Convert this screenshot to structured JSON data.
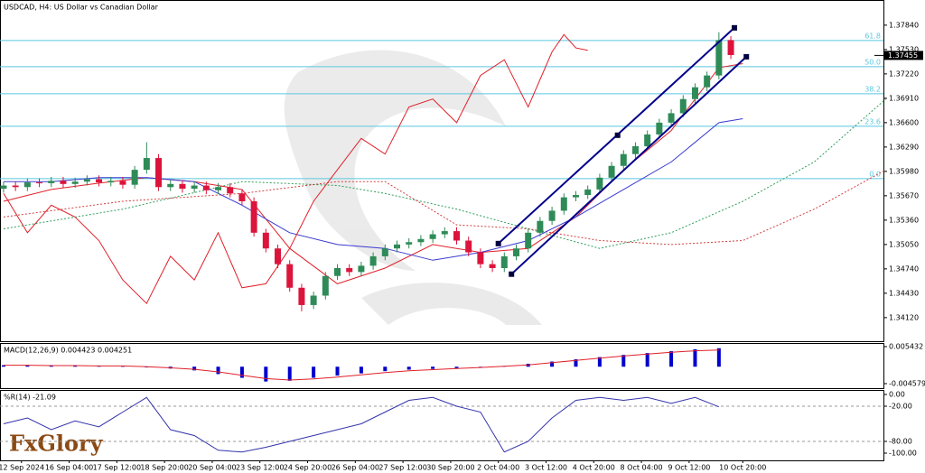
{
  "logo": "FxGlory",
  "chart_data": [
    {
      "type": "candlestick",
      "title": "USDCAD, H4:  US Dollar vs Canadian Dollar",
      "up_color": "#2e8b57",
      "down_color": "#dc143c",
      "xlim": [
        -0.6,
        147.6
      ],
      "xticks": [
        {
          "value": 3,
          "label": "12 Sep 2024"
        },
        {
          "value": 11,
          "label": "16 Sep 04:00"
        },
        {
          "value": 19,
          "label": "17 Sep 12:00"
        },
        {
          "value": 27,
          "label": "18 Sep 20:00"
        },
        {
          "value": 35,
          "label": "20 Sep 04:00"
        },
        {
          "value": 43,
          "label": "23 Sep 12:00"
        },
        {
          "value": 51,
          "label": "24 Sep 20:00"
        },
        {
          "value": 59,
          "label": "26 Sep 04:00"
        },
        {
          "value": 67,
          "label": "27 Sep 12:00"
        },
        {
          "value": 75,
          "label": "30 Sep 20:00"
        },
        {
          "value": 83,
          "label": "2 Oct 04:00"
        },
        {
          "value": 91,
          "label": "3 Oct 12:00"
        },
        {
          "value": 99,
          "label": "4 Oct 20:00"
        },
        {
          "value": 107,
          "label": "8 Oct 04:00"
        },
        {
          "value": 115,
          "label": "9 Oct 12:00"
        },
        {
          "value": 124,
          "label": "10 Oct 20:00"
        }
      ],
      "ylim": [
        1.3382,
        1.3816
      ],
      "yticks": [
        {
          "value": 1.3784,
          "label": "1.37840"
        },
        {
          "value": 1.3753,
          "label": "1.37530"
        },
        {
          "value": 1.3722,
          "label": "1.37220"
        },
        {
          "value": 1.3691,
          "label": "1.36910"
        },
        {
          "value": 1.366,
          "label": "1.36600"
        },
        {
          "value": 1.3629,
          "label": "1.36290"
        },
        {
          "value": 1.3598,
          "label": "1.35980"
        },
        {
          "value": 1.3567,
          "label": "1.35670"
        },
        {
          "value": 1.3536,
          "label": "1.35360"
        },
        {
          "value": 1.3505,
          "label": "1.35050"
        },
        {
          "value": 1.3474,
          "label": "1.34740"
        },
        {
          "value": 1.3443,
          "label": "1.34430"
        },
        {
          "value": 1.3412,
          "label": "1.34120"
        }
      ],
      "current_price": 1.37455,
      "level_color": "#5bc8e0",
      "levels": [
        {
          "value": 1.37645,
          "label": "61.8"
        },
        {
          "value": 1.37312,
          "label": "50.0"
        },
        {
          "value": 1.36967,
          "label": "38.2"
        },
        {
          "value": 1.36554,
          "label": "23.6"
        },
        {
          "value": 1.35888,
          "label": "0.0"
        }
      ],
      "x": [
        0,
        2,
        4,
        6,
        8,
        10,
        12,
        14,
        16,
        18,
        20,
        22,
        24,
        26,
        28,
        30,
        32,
        34,
        36,
        38,
        40,
        42,
        44,
        46,
        48,
        50,
        52,
        54,
        56,
        58,
        60,
        62,
        64,
        66,
        68,
        70,
        72,
        74,
        76,
        78,
        80,
        82,
        84,
        86,
        88,
        90,
        92,
        94,
        96,
        98,
        100,
        102,
        104,
        106,
        108,
        110,
        112,
        114,
        116,
        118,
        120,
        122
      ],
      "open": [
        1.3576,
        1.358,
        1.3578,
        1.3584,
        1.3583,
        1.3586,
        1.3582,
        1.3585,
        1.3588,
        1.3584,
        1.3586,
        1.3581,
        1.36,
        1.3615,
        1.3578,
        1.3582,
        1.3576,
        1.358,
        1.3574,
        1.3578,
        1.357,
        1.356,
        1.352,
        1.35,
        1.348,
        1.345,
        1.3428,
        1.344,
        1.3465,
        1.3475,
        1.347,
        1.3478,
        1.349,
        1.35,
        1.3505,
        1.3508,
        1.3512,
        1.3518,
        1.3522,
        1.351,
        1.3495,
        1.348,
        1.3475,
        1.349,
        1.35,
        1.352,
        1.3535,
        1.3548,
        1.3565,
        1.3568,
        1.3575,
        1.359,
        1.3605,
        1.362,
        1.363,
        1.3645,
        1.366,
        1.3672,
        1.369,
        1.3705,
        1.372,
        1.3765
      ],
      "high": [
        1.3585,
        1.3585,
        1.3589,
        1.3589,
        1.3591,
        1.3591,
        1.359,
        1.3593,
        1.3593,
        1.3591,
        1.3591,
        1.3605,
        1.3635,
        1.362,
        1.3587,
        1.3587,
        1.3585,
        1.3585,
        1.3583,
        1.3583,
        1.3575,
        1.3565,
        1.3525,
        1.3505,
        1.3485,
        1.3455,
        1.3445,
        1.347,
        1.348,
        1.348,
        1.3483,
        1.3495,
        1.3505,
        1.351,
        1.3513,
        1.3517,
        1.3523,
        1.3527,
        1.3527,
        1.3515,
        1.35,
        1.3485,
        1.3495,
        1.3505,
        1.3525,
        1.354,
        1.3553,
        1.357,
        1.3573,
        1.358,
        1.3595,
        1.361,
        1.3625,
        1.3635,
        1.365,
        1.3665,
        1.3677,
        1.3695,
        1.371,
        1.3725,
        1.3775,
        1.377
      ],
      "low": [
        1.3571,
        1.3573,
        1.3573,
        1.3578,
        1.3578,
        1.3577,
        1.3577,
        1.358,
        1.3579,
        1.3579,
        1.3576,
        1.3576,
        1.3595,
        1.3573,
        1.3573,
        1.3571,
        1.3571,
        1.3569,
        1.3569,
        1.3565,
        1.3555,
        1.3515,
        1.3495,
        1.3475,
        1.3445,
        1.342,
        1.3423,
        1.3435,
        1.346,
        1.3465,
        1.3465,
        1.3473,
        1.3485,
        1.3495,
        1.35,
        1.3503,
        1.3507,
        1.3513,
        1.3505,
        1.349,
        1.3475,
        1.347,
        1.347,
        1.3485,
        1.3495,
        1.3515,
        1.353,
        1.3543,
        1.356,
        1.3563,
        1.357,
        1.3585,
        1.36,
        1.3615,
        1.3625,
        1.364,
        1.3655,
        1.3667,
        1.3685,
        1.37,
        1.3715,
        1.3741
      ],
      "close": [
        1.358,
        1.3578,
        1.3584,
        1.3583,
        1.3586,
        1.3582,
        1.3585,
        1.3588,
        1.3584,
        1.3586,
        1.3581,
        1.36,
        1.3615,
        1.3578,
        1.3582,
        1.3576,
        1.358,
        1.3574,
        1.3578,
        1.357,
        1.356,
        1.352,
        1.35,
        1.348,
        1.345,
        1.3428,
        1.344,
        1.3465,
        1.3475,
        1.347,
        1.3478,
        1.349,
        1.35,
        1.3505,
        1.3508,
        1.3512,
        1.3518,
        1.3522,
        1.351,
        1.3495,
        1.348,
        1.3475,
        1.349,
        1.35,
        1.352,
        1.3535,
        1.3548,
        1.3565,
        1.3568,
        1.3575,
        1.359,
        1.3605,
        1.362,
        1.363,
        1.3645,
        1.366,
        1.3672,
        1.369,
        1.3705,
        1.372,
        1.3765,
        1.3746
      ],
      "lines": [
        {
          "color": "#2e9e5b",
          "dash": true,
          "x": [
            0,
            20,
            40,
            56,
            64,
            76,
            88,
            100,
            112,
            124,
            136,
            148
          ],
          "values": [
            1.3525,
            1.355,
            1.3585,
            1.358,
            1.357,
            1.355,
            1.3525,
            1.35,
            1.352,
            1.356,
            1.361,
            1.369
          ]
        },
        {
          "color": "#d04040",
          "dash": true,
          "x": [
            0,
            20,
            40,
            56,
            64,
            76,
            88,
            100,
            112,
            124,
            136,
            148
          ],
          "values": [
            1.354,
            1.356,
            1.357,
            1.3585,
            1.3585,
            1.353,
            1.3525,
            1.351,
            1.3505,
            1.351,
            1.355,
            1.36
          ]
        },
        {
          "color": "#e0202a",
          "dash": false,
          "x": [
            0,
            8,
            16,
            24,
            32,
            40,
            48,
            56,
            64,
            72,
            80,
            88,
            96,
            104,
            112,
            120,
            124
          ],
          "values": [
            1.356,
            1.3575,
            1.3583,
            1.359,
            1.3585,
            1.3575,
            1.35,
            1.3455,
            1.3475,
            1.3505,
            1.3495,
            1.35,
            1.354,
            1.36,
            1.365,
            1.373,
            1.3735
          ]
        },
        {
          "color": "#3a3ad0",
          "dash": false,
          "x": [
            0,
            8,
            16,
            24,
            32,
            40,
            48,
            56,
            64,
            72,
            80,
            88,
            96,
            104,
            112,
            120,
            124
          ],
          "values": [
            1.3585,
            1.3585,
            1.359,
            1.359,
            1.3585,
            1.3555,
            1.352,
            1.3505,
            1.35,
            1.3485,
            1.3495,
            1.351,
            1.354,
            1.3575,
            1.361,
            1.366,
            1.3665
          ]
        },
        {
          "color": "#e0202a",
          "dash": false,
          "x": [
            0,
            4,
            8,
            12,
            16,
            20,
            24,
            28,
            32,
            36,
            40,
            44,
            48,
            52,
            56,
            60,
            64,
            68,
            72,
            76,
            80,
            84,
            88,
            92,
            94,
            96,
            98
          ],
          "values": [
            1.357,
            1.352,
            1.3555,
            1.354,
            1.351,
            1.346,
            1.343,
            1.349,
            1.346,
            1.352,
            1.345,
            1.3455,
            1.35,
            1.356,
            1.36,
            1.364,
            1.362,
            1.368,
            1.369,
            1.366,
            1.372,
            1.374,
            1.368,
            1.375,
            1.3772,
            1.3755,
            1.3752
          ]
        }
      ],
      "channel_color": "#00008b",
      "channel": [
        {
          "x": [
            83,
            122.6
          ],
          "values": [
            1.35062,
            1.37806
          ]
        },
        {
          "x": [
            85.2,
            124.6
          ],
          "values": [
            1.34673,
            1.37438
          ]
        }
      ],
      "anchor": {
        "x": 103,
        "value": 1.3644
      }
    },
    {
      "type": "macd",
      "title": "MACD(12,26,9) 0.004423 0.004251",
      "color": "#0000cc",
      "signal_color": "#e0202a",
      "xlim": [
        -0.6,
        147.6
      ],
      "ylim": [
        -0.0058,
        0.00641
      ],
      "yticks": [
        0.005432,
        -0.004579
      ],
      "x": [
        0,
        4,
        8,
        12,
        16,
        20,
        24,
        28,
        32,
        36,
        40,
        44,
        48,
        52,
        56,
        60,
        64,
        68,
        72,
        76,
        80,
        84,
        88,
        92,
        96,
        100,
        104,
        108,
        112,
        116,
        120
      ],
      "values": [
        0.0004,
        0.0003,
        0.0002,
        0.0003,
        0.0002,
        0.0001,
        -0.0002,
        -0.0005,
        -0.001,
        -0.002,
        -0.003,
        -0.004,
        -0.0038,
        -0.003,
        -0.0024,
        -0.0018,
        -0.0012,
        -0.0008,
        -0.0006,
        -0.0004,
        -0.0001,
        0.0002,
        0.0008,
        0.0014,
        0.002,
        0.0026,
        0.0032,
        0.0037,
        0.0042,
        0.0047,
        0.005
      ],
      "signal": [
        0.0004,
        0.0004,
        0.0003,
        0.0003,
        0.0002,
        0.0002,
        0.0,
        -0.0003,
        -0.0007,
        -0.0014,
        -0.0023,
        -0.0032,
        -0.0036,
        -0.0033,
        -0.0028,
        -0.0022,
        -0.0016,
        -0.0011,
        -0.0008,
        -0.0005,
        -0.0002,
        0.0001,
        0.0005,
        0.0011,
        0.0017,
        0.0023,
        0.0029,
        0.0034,
        0.0039,
        0.0043,
        0.0045
      ]
    },
    {
      "type": "line",
      "title": "%R(14) -21.09",
      "color": "#3333aa",
      "xlim": [
        -0.6,
        147.6
      ],
      "ylim": [
        -112.3,
        7.7
      ],
      "yticks": [
        {
          "value": 0,
          "label": "0.00"
        },
        {
          "value": -20,
          "label": "-20.00"
        },
        {
          "value": -80,
          "label": "-80.00"
        },
        {
          "value": -100,
          "label": "-100.00"
        }
      ],
      "levels": [
        -20,
        -80
      ],
      "x": [
        0,
        4,
        8,
        12,
        16,
        20,
        24,
        28,
        32,
        36,
        40,
        44,
        48,
        52,
        56,
        60,
        64,
        68,
        72,
        76,
        80,
        84,
        88,
        92,
        96,
        100,
        104,
        108,
        112,
        116,
        120
      ],
      "values": [
        -50,
        -40,
        -60,
        -45,
        -55,
        -30,
        -5,
        -60,
        -70,
        -95,
        -98,
        -90,
        -80,
        -70,
        -60,
        -50,
        -30,
        -10,
        -5,
        -20,
        -30,
        -98,
        -80,
        -40,
        -10,
        -5,
        -10,
        -5,
        -15,
        -5,
        -21
      ]
    }
  ]
}
